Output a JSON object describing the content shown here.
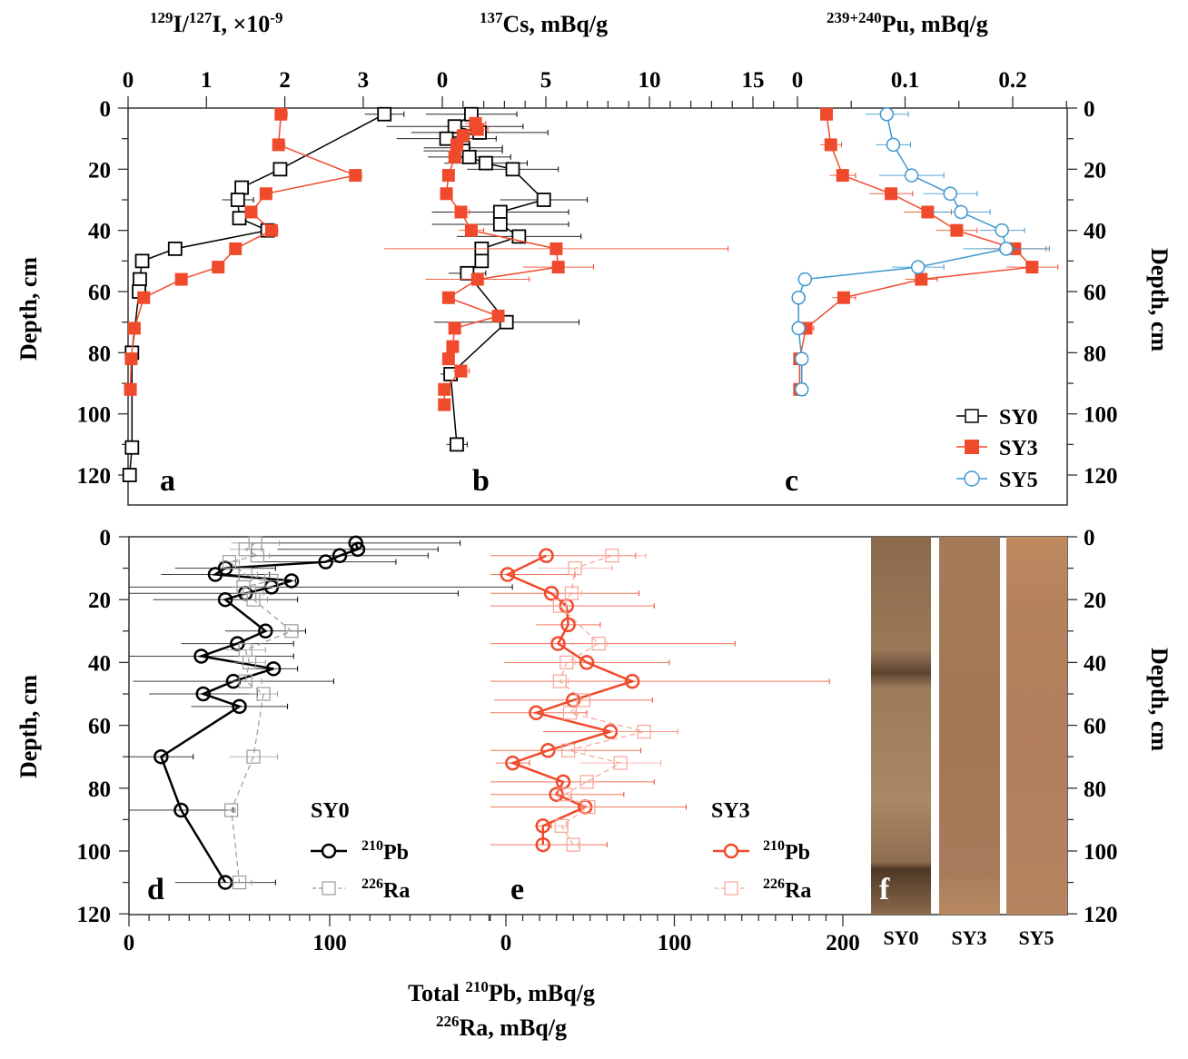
{
  "chart_data": [
    {
      "id": "a",
      "type": "line",
      "panel_label": "a",
      "xlabel_parts": {
        "sup1": "129",
        "mid": "I/",
        "sup2": "127",
        "tail": "I, ×10",
        "sup3": "-9"
      },
      "ylabel": "Depth, cm",
      "xlim": [
        0,
        3.5
      ],
      "xticks": [
        "0",
        "1",
        "2",
        "3"
      ],
      "ylim": [
        0,
        130
      ],
      "yticks": [
        "0",
        "20",
        "40",
        "60",
        "80",
        "100",
        "120"
      ],
      "series": [
        {
          "name": "SY0",
          "marker": "open-square",
          "color": "#000000",
          "depth": [
            2,
            20,
            26,
            30,
            36,
            40,
            46,
            50,
            56,
            60,
            80,
            111,
            120
          ],
          "values": [
            3.27,
            1.94,
            1.45,
            1.4,
            1.42,
            1.78,
            0.6,
            0.18,
            0.15,
            0.14,
            0.05,
            0.05,
            0.02
          ],
          "xerr": [
            0.25,
            0.05,
            0.03,
            0.2,
            0.03,
            0.05,
            0.04,
            0.03,
            0.02,
            0.02,
            0.01,
            0.01,
            0.01
          ]
        },
        {
          "name": "SY3",
          "marker": "filled-square",
          "color": "#f04a2c",
          "depth": [
            2,
            12,
            22,
            28,
            34,
            40,
            46,
            52,
            56,
            62,
            72,
            82,
            92
          ],
          "values": [
            1.95,
            1.92,
            2.9,
            1.76,
            1.57,
            1.83,
            1.37,
            1.15,
            0.68,
            0.2,
            0.08,
            0.04,
            0.03
          ],
          "xerr": [
            0.08,
            0.08,
            0.08,
            0.05,
            0.04,
            0.08,
            0.04,
            0.03,
            0.03,
            0.01,
            0.01,
            0.01,
            0.01
          ]
        }
      ]
    },
    {
      "id": "b",
      "type": "line",
      "panel_label": "b",
      "xlabel_parts": {
        "sup1": "137",
        "tail": "Cs, mBq/g"
      },
      "xlim": [
        0,
        16.5
      ],
      "xticks": [
        "0",
        "5",
        "10",
        "15"
      ],
      "ylim": [
        0,
        130
      ],
      "series": [
        {
          "name": "SY0",
          "marker": "open-square",
          "color": "#000000",
          "depth": [
            2,
            6,
            8,
            10,
            13,
            14,
            16,
            18,
            20,
            30,
            34,
            38,
            42,
            46,
            50,
            54,
            70,
            87,
            110
          ],
          "values": [
            1.4,
            0.6,
            1.8,
            0.2,
            1.0,
            1.0,
            1.3,
            2.1,
            3.4,
            4.9,
            2.8,
            2.8,
            3.7,
            1.9,
            1.9,
            1.2,
            3.1,
            0.4,
            0.7
          ],
          "xerr": [
            2.2,
            3.3,
            3.3,
            2.4,
            1.9,
            1.9,
            2.0,
            2.0,
            2.2,
            2.1,
            3.3,
            3.3,
            3.0,
            0.0,
            0.0,
            0.9,
            3.5,
            0.5,
            0.5
          ]
        },
        {
          "name": "SY3",
          "marker": "filled-square",
          "color": "#f04a2c",
          "depth": [
            5,
            7,
            9,
            12,
            16,
            22,
            28,
            34,
            40,
            46,
            52,
            56,
            62,
            68,
            72,
            78,
            82,
            86,
            92,
            97
          ],
          "values": [
            1.6,
            1.7,
            1.0,
            0.7,
            0.6,
            0.3,
            0.2,
            0.9,
            1.4,
            5.5,
            5.6,
            1.7,
            0.3,
            2.7,
            0.6,
            0.5,
            0.3,
            0.9,
            0.1,
            0.1
          ],
          "xerr": [
            0.5,
            0.5,
            0.3,
            0.3,
            0.3,
            0.2,
            0.2,
            0.4,
            0.6,
            8.3,
            1.7,
            2.5,
            0.1,
            0.2,
            0.2,
            0.2,
            0.2,
            0.4,
            0.1,
            0.1
          ]
        }
      ]
    },
    {
      "id": "c",
      "type": "line",
      "panel_label": "c",
      "xlabel_parts": {
        "sup1": "239+240",
        "tail": "Pu, mBq/g"
      },
      "ylabel_right": "Depth, cm",
      "xlim": [
        0,
        0.25
      ],
      "xticks": [
        "0",
        "0.1",
        "0.2"
      ],
      "ylim": [
        0,
        130
      ],
      "yticks": [
        "0",
        "20",
        "40",
        "60",
        "80",
        "100",
        "120"
      ],
      "legend": {
        "placement": "bottom-right",
        "entries": [
          "SY0",
          "SY3",
          "SY5"
        ]
      },
      "series": [
        {
          "name": "SY0",
          "marker": "open-square",
          "color": "#000000",
          "depth": [],
          "values": [],
          "xerr": []
        },
        {
          "name": "SY3",
          "marker": "filled-square",
          "color": "#f04a2c",
          "depth": [
            2,
            12,
            22,
            28,
            34,
            40,
            46,
            52,
            56,
            62,
            72,
            82,
            92
          ],
          "values": [
            0.027,
            0.031,
            0.042,
            0.087,
            0.121,
            0.148,
            0.202,
            0.218,
            0.115,
            0.043,
            0.008,
            0.002,
            0.002
          ],
          "xerr": [
            0.003,
            0.01,
            0.012,
            0.02,
            0.022,
            0.019,
            0.029,
            0.024,
            0.015,
            0.011,
            0.007,
            0.002,
            0.002
          ]
        },
        {
          "name": "SY5",
          "marker": "open-circle",
          "color": "#3d97cf",
          "depth": [
            2,
            12,
            22,
            28,
            34,
            40,
            46,
            52,
            56,
            62,
            72,
            82,
            92
          ],
          "values": [
            0.083,
            0.089,
            0.106,
            0.142,
            0.152,
            0.19,
            0.194,
            0.112,
            0.007,
            0.001,
            0.001,
            0.004,
            0.004
          ],
          "xerr": [
            0.02,
            0.016,
            0.03,
            0.025,
            0.027,
            0.021,
            0.04,
            0.024,
            0.003,
            0.006,
            0.002,
            0.002,
            0.002
          ]
        }
      ]
    },
    {
      "id": "d",
      "type": "line",
      "panel_label": "d",
      "ylabel": "Depth, cm",
      "xlim": [
        0,
        120
      ],
      "xticks": [
        "0",
        "100"
      ],
      "ylim": [
        0,
        120
      ],
      "yticks": [
        "0",
        "20",
        "40",
        "60",
        "80",
        "100",
        "120"
      ],
      "legend": {
        "title": "SY0",
        "entries": [
          "210Pb",
          "226Ra"
        ]
      },
      "series": [
        {
          "name": "210Pb",
          "marker": "open-circle",
          "line": "solid",
          "color": "#000000",
          "depth": [
            2,
            4,
            6,
            8,
            10,
            12,
            14,
            16,
            18,
            20,
            30,
            34,
            38,
            42,
            46,
            50,
            54,
            70,
            87,
            110
          ],
          "values": [
            113,
            114,
            105,
            98,
            48,
            43,
            81,
            71,
            58,
            48,
            68,
            54,
            36,
            72,
            52,
            37,
            55,
            16,
            26,
            48
          ],
          "xerr": [
            52,
            40,
            44,
            35,
            25,
            27,
            2,
            120,
            106,
            36,
            20,
            28,
            46,
            12,
            50,
            27,
            24,
            16,
            26,
            25
          ]
        },
        {
          "name": "226Ra",
          "marker": "open-square",
          "line": "dashed",
          "color": "#999999",
          "depth": [
            2,
            4,
            6,
            8,
            12,
            14,
            16,
            18,
            20,
            30,
            36,
            40,
            46,
            50,
            70,
            87,
            110
          ],
          "values": [
            63,
            58,
            64,
            50,
            58,
            71,
            57,
            60,
            62,
            81,
            58,
            60,
            58,
            67,
            62,
            51,
            55
          ],
          "xerr": [
            12,
            8,
            6,
            5,
            6,
            6,
            6,
            7,
            7,
            3,
            10,
            8,
            8,
            7,
            12,
            2,
            6
          ]
        }
      ]
    },
    {
      "id": "e",
      "type": "line",
      "panel_label": "e",
      "xlim": [
        -8,
        215
      ],
      "xticks": [
        "0",
        "100",
        "200"
      ],
      "ylim": [
        0,
        120
      ],
      "legend": {
        "title": "SY3",
        "entries": [
          "210Pb",
          "226Ra"
        ]
      },
      "series": [
        {
          "name": "210Pb",
          "marker": "open-circle",
          "line": "solid",
          "color": "#f04a2c",
          "depth": [
            6,
            12,
            18,
            22,
            28,
            34,
            40,
            46,
            52,
            56,
            62,
            68,
            72,
            78,
            82,
            86,
            92,
            98
          ],
          "values": [
            24,
            1,
            27,
            36,
            37,
            31,
            48,
            75,
            40,
            18,
            62,
            25,
            4,
            34,
            30,
            47,
            22,
            22
          ],
          "xerr": [
            53,
            40,
            52,
            52,
            19,
            105,
            49,
            117,
            47,
            30,
            40,
            55,
            10,
            54,
            40,
            60,
            5,
            38
          ]
        },
        {
          "name": "226Ra",
          "marker": "open-square",
          "line": "dashed",
          "color": "#f7a396",
          "depth": [
            6,
            10,
            18,
            22,
            34,
            40,
            46,
            52,
            56,
            62,
            68,
            72,
            78,
            82,
            86,
            92,
            98
          ],
          "values": [
            63,
            41,
            39,
            32,
            55,
            36,
            32,
            46,
            38,
            82,
            37,
            68,
            48,
            35,
            49,
            33,
            40
          ],
          "xerr": [
            20,
            22,
            6,
            4,
            5,
            5,
            5,
            4,
            3,
            20,
            10,
            24,
            4,
            4,
            4,
            3,
            3
          ]
        }
      ]
    }
  ],
  "shared": {
    "bottom_xlabel_line1_pre": "Total ",
    "bottom_xlabel_line1_sup": "210",
    "bottom_xlabel_line1_tail": "Pb, mBq/g",
    "bottom_xlabel_line2_sup": "226",
    "bottom_xlabel_line2_tail": "Ra, mBq/g"
  },
  "cores": {
    "panel_label": "f",
    "labels": [
      "SY0",
      "SY3",
      "SY5"
    ],
    "colors": [
      "#9e7c5c",
      "#a87a58",
      "#b7845e"
    ]
  },
  "colors": {
    "sy0": "#000000",
    "sy3": "#f04a2c",
    "sy5": "#3d97cf",
    "ra_sy0": "#999999",
    "ra_sy3": "#f7a396"
  }
}
